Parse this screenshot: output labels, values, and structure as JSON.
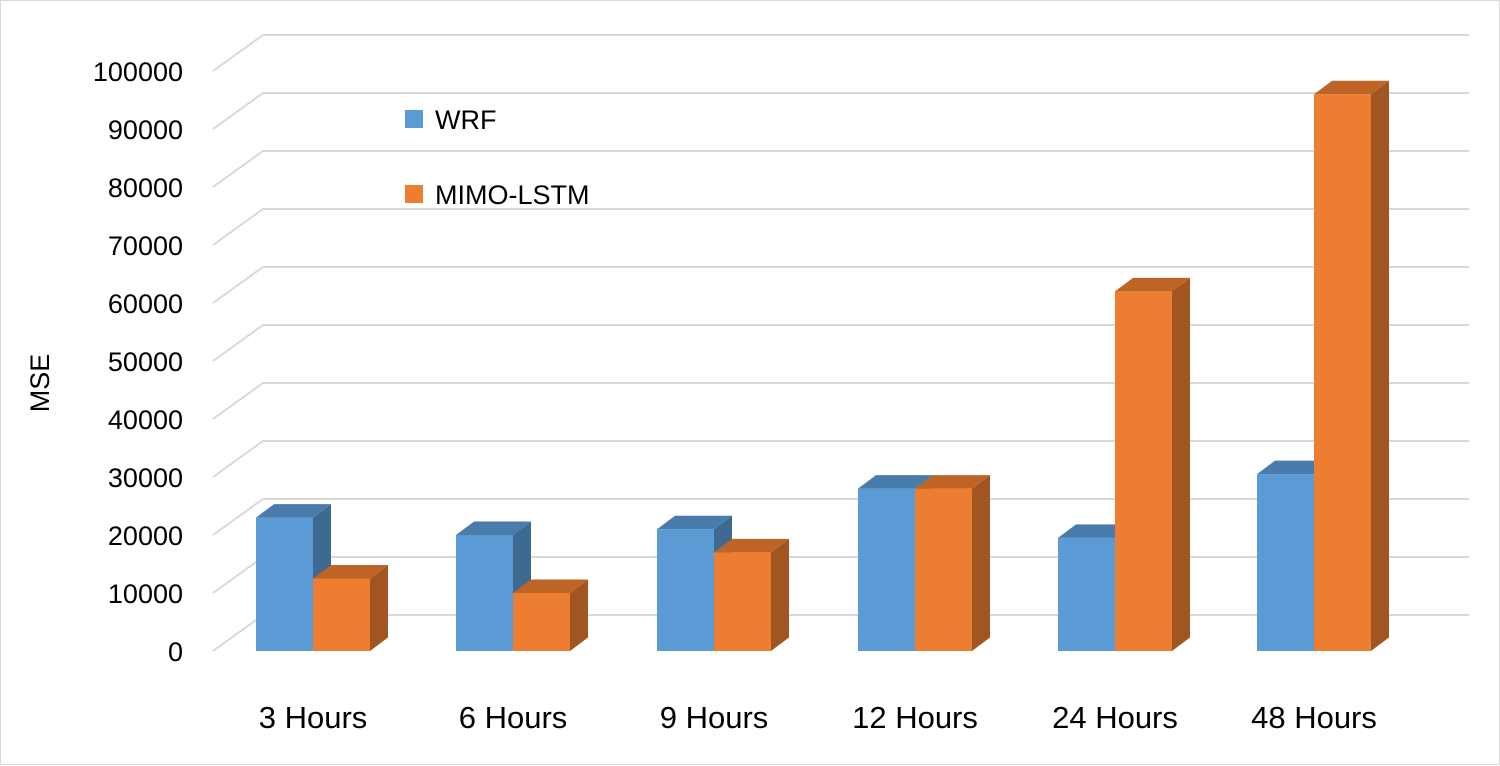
{
  "chart_data": {
    "type": "bar",
    "style": "3d-clustered-column",
    "title": "",
    "xlabel": "",
    "ylabel": "MSE",
    "ylim": [
      0,
      100000
    ],
    "yticks": [
      "0",
      "10000",
      "20000",
      "30000",
      "40000",
      "50000",
      "60000",
      "70000",
      "80000",
      "90000",
      "100000"
    ],
    "categories": [
      "3 Hours",
      "6 Hours",
      "9 Hours",
      "12 Hours",
      "24 Hours",
      "48 Hours"
    ],
    "series": [
      {
        "name": "WRF",
        "color": "#5b9bd5",
        "values": [
          23000,
          20000,
          21000,
          28000,
          19500,
          30500
        ]
      },
      {
        "name": "MIMO-LSTM",
        "color": "#ed7d31",
        "values": [
          12500,
          10000,
          17000,
          28000,
          62000,
          96000
        ]
      }
    ],
    "grid": true,
    "legend_position": "top-left"
  }
}
